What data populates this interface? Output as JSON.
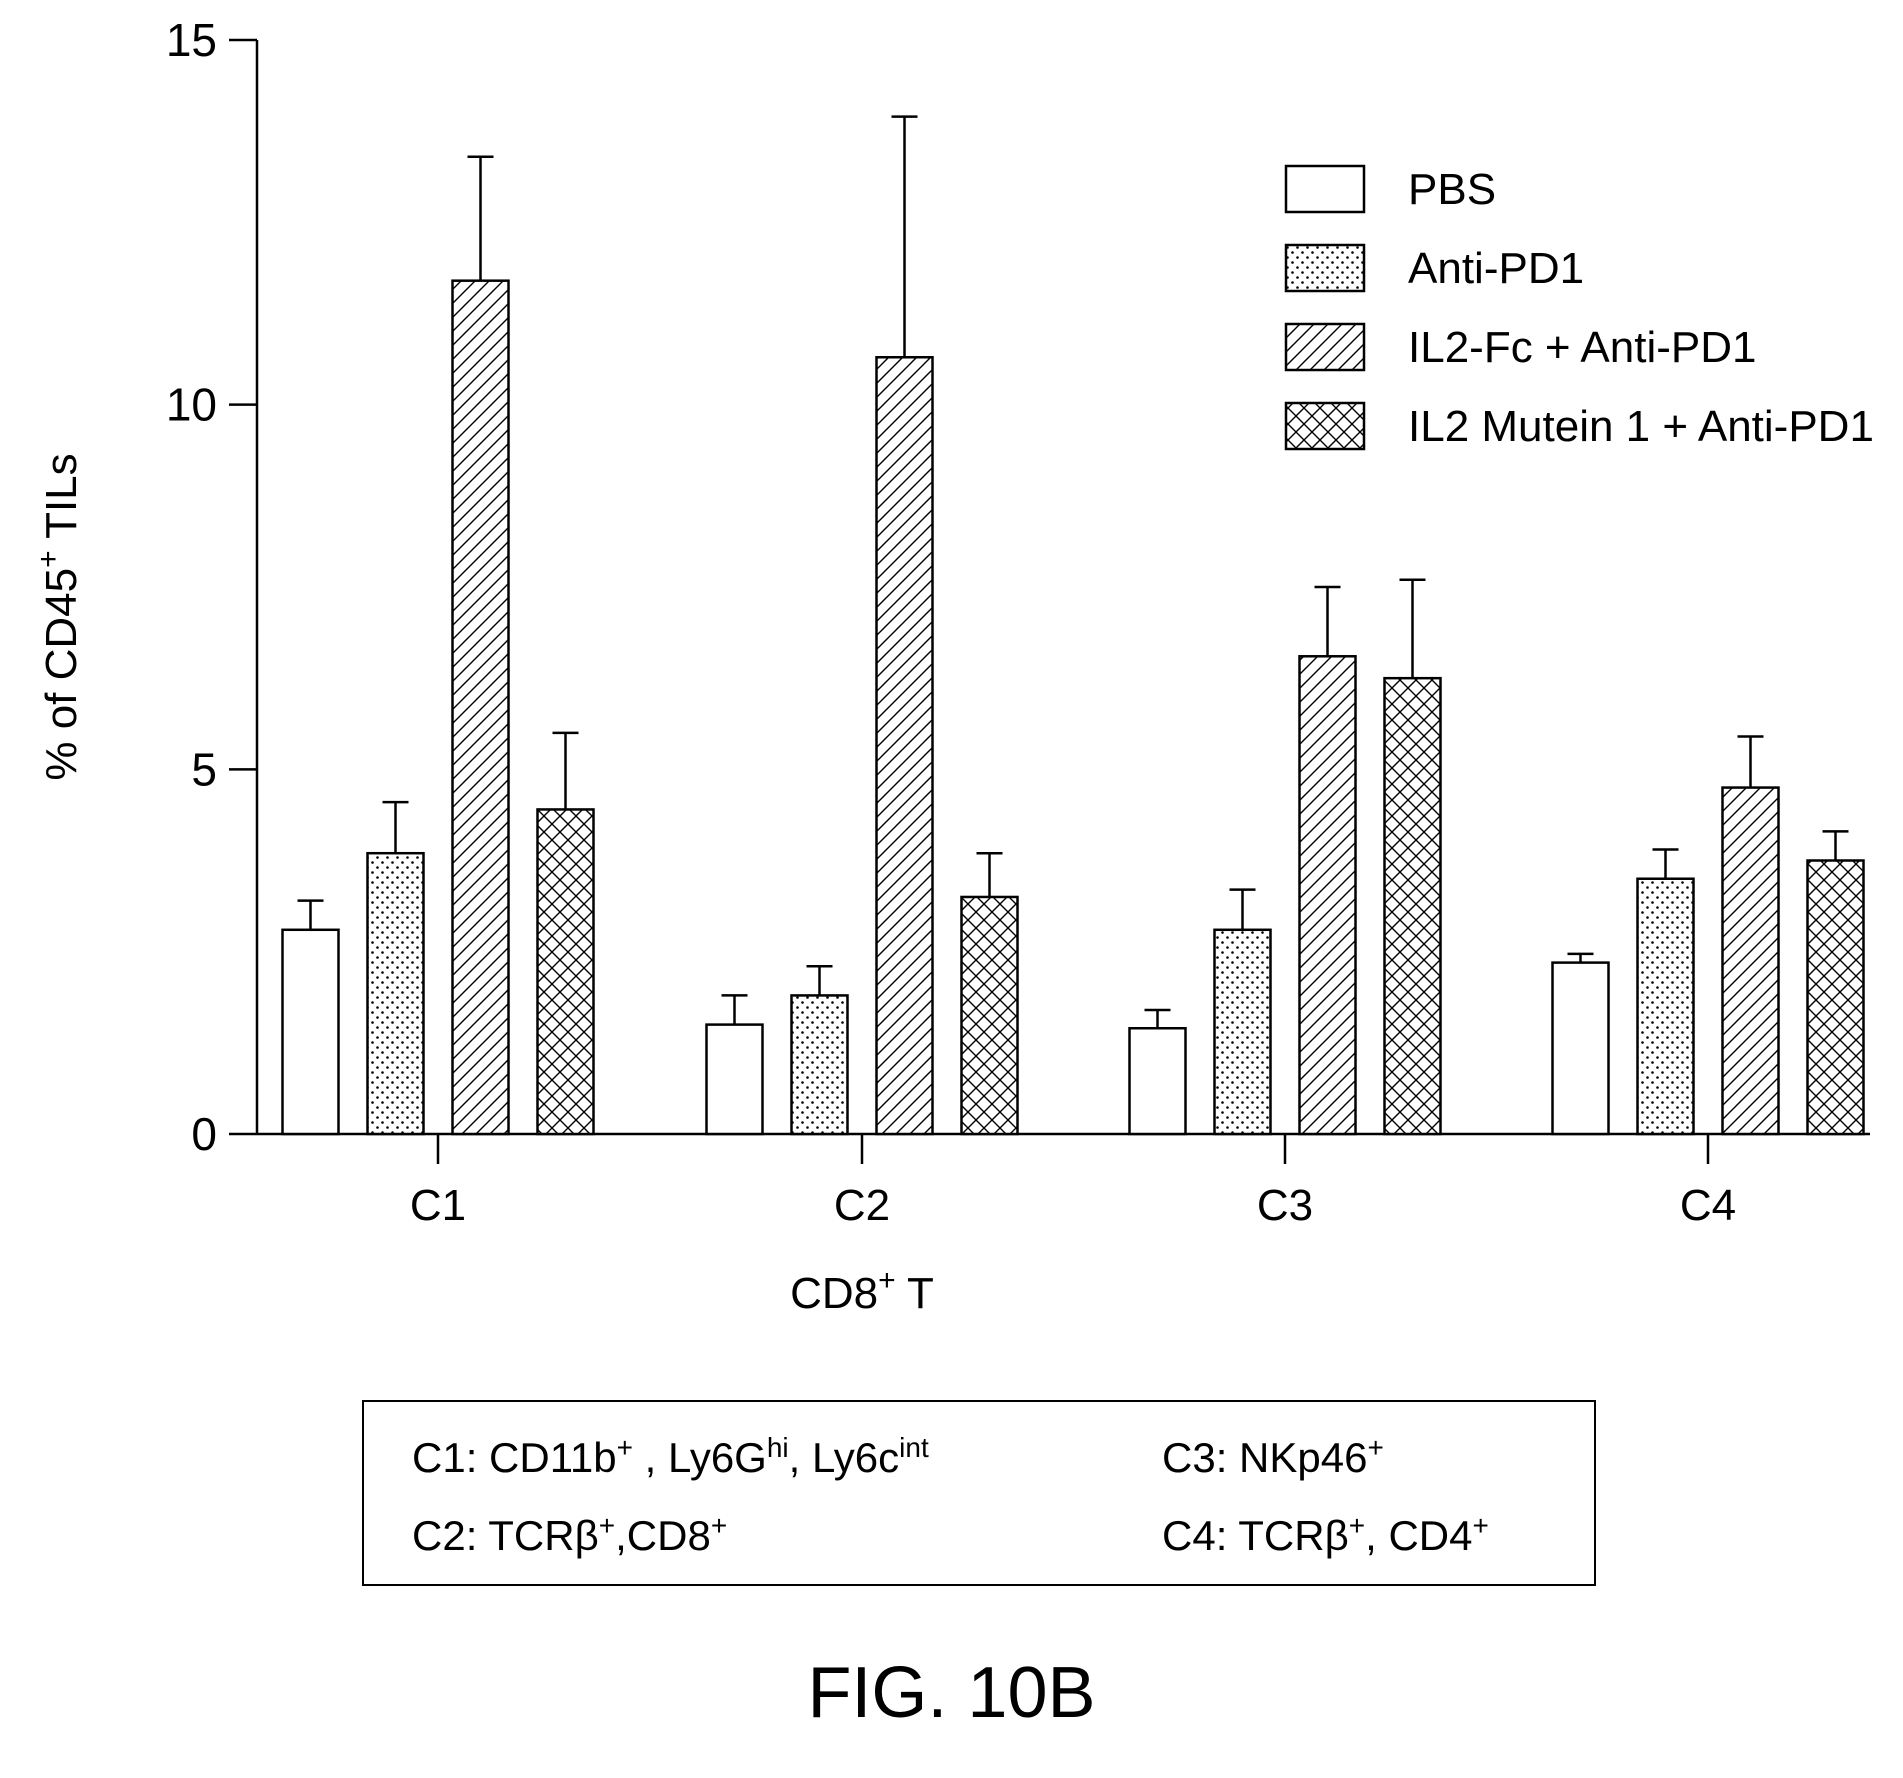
{
  "chart_data": {
    "type": "bar",
    "ylabel": "% of  CD45",
    "ylabel_sup": "+",
    "ylabel_suffix": " TILs",
    "ylim": [
      0,
      15
    ],
    "yticks": [
      0,
      5,
      10,
      15
    ],
    "categories": [
      "C1",
      "C2",
      "C3",
      "C4"
    ],
    "x_sublabel": "CD8",
    "x_sublabel_sup": "+",
    "x_sublabel_suffix": " T",
    "legend_position": "top-right",
    "series": [
      {
        "name": "PBS",
        "pattern": "empty",
        "values": [
          2.8,
          1.5,
          1.45,
          2.35
        ],
        "errors": [
          0.4,
          0.4,
          0.25,
          0.12
        ]
      },
      {
        "name": "Anti-PD1",
        "pattern": "dotted",
        "values": [
          3.85,
          1.9,
          2.8,
          3.5
        ],
        "errors": [
          0.7,
          0.4,
          0.55,
          0.4
        ]
      },
      {
        "name": "IL2-Fc + Anti-PD1",
        "pattern": "diagonal",
        "values": [
          11.7,
          10.65,
          6.55,
          4.75
        ],
        "errors": [
          1.7,
          3.3,
          0.95,
          0.7
        ]
      },
      {
        "name": "IL2 Mutein 1 + Anti-PD1",
        "pattern": "crosshatch",
        "values": [
          4.45,
          3.25,
          6.25,
          3.75
        ],
        "errors": [
          1.05,
          0.6,
          1.35,
          0.4
        ]
      }
    ]
  },
  "key": {
    "c1": {
      "prefix": "C1: CD11b",
      "sup1": "+",
      "mid1": " , Ly6G",
      "sup2": "hi",
      "mid2": ", Ly6c",
      "sup3": "int"
    },
    "c2": {
      "prefix": "C2: TCRβ",
      "sup1": "+",
      "mid1": ",CD8",
      "sup2": "+"
    },
    "c3": {
      "prefix": "C3: NKp46",
      "sup1": "+"
    },
    "c4": {
      "prefix": "C4: TCRβ",
      "sup1": "+",
      "mid1": ", CD4",
      "sup2": "+"
    }
  },
  "caption": "FIG. 10B"
}
